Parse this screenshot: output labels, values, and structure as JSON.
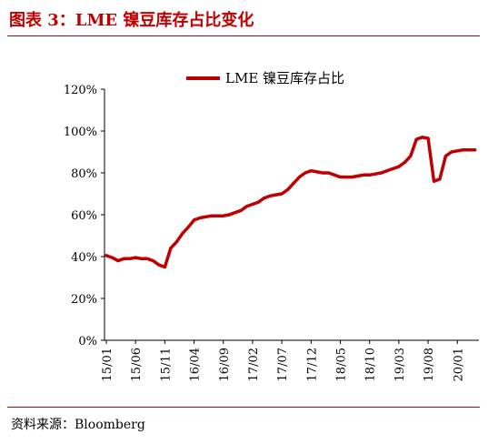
{
  "header": {
    "title": "图表 3：LME 镍豆库存占比变化"
  },
  "footer": {
    "source": "资料来源：Bloomberg"
  },
  "colors": {
    "accent": "#c00000",
    "series": "#c00000"
  },
  "chart_data": {
    "type": "line",
    "title": "",
    "xlabel": "",
    "ylabel": "",
    "ylim": [
      0,
      120
    ],
    "y_unit": "%",
    "y_ticks": [
      "0%",
      "20%",
      "40%",
      "60%",
      "80%",
      "100%",
      "120%"
    ],
    "x_ticks": [
      "15/01",
      "15/06",
      "15/11",
      "16/04",
      "16/09",
      "17/02",
      "17/07",
      "17/12",
      "18/05",
      "18/10",
      "19/03",
      "19/08",
      "20/01"
    ],
    "grid": false,
    "legend": "top-center",
    "series": [
      {
        "name": "LME 镍豆库存占比",
        "x": [
          "15/01",
          "15/02",
          "15/03",
          "15/04",
          "15/05",
          "15/06",
          "15/07",
          "15/08",
          "15/09",
          "15/10",
          "15/11",
          "15/12",
          "16/01",
          "16/02",
          "16/03",
          "16/04",
          "16/05",
          "16/06",
          "16/07",
          "16/08",
          "16/09",
          "16/10",
          "16/11",
          "16/12",
          "17/01",
          "17/02",
          "17/03",
          "17/04",
          "17/05",
          "17/06",
          "17/07",
          "17/08",
          "17/09",
          "17/10",
          "17/11",
          "17/12",
          "18/01",
          "18/02",
          "18/03",
          "18/04",
          "18/05",
          "18/06",
          "18/07",
          "18/08",
          "18/09",
          "18/10",
          "18/11",
          "18/12",
          "19/01",
          "19/02",
          "19/03",
          "19/04",
          "19/05",
          "19/06",
          "19/07",
          "19/08",
          "19/09",
          "19/10",
          "19/11",
          "19/12",
          "20/01",
          "20/02",
          "20/03",
          "20/04"
        ],
        "values": [
          40.5,
          39.5,
          38,
          39,
          39,
          39.5,
          39,
          39,
          38,
          36,
          35,
          44,
          47,
          51,
          54,
          57.5,
          58.5,
          59,
          59.5,
          59.5,
          59.5,
          60,
          61,
          62,
          64,
          65,
          66,
          68,
          69,
          69.5,
          70,
          72,
          75,
          78,
          80,
          81,
          80.5,
          80,
          80,
          79,
          78,
          78,
          78,
          78.5,
          79,
          79,
          79.5,
          80,
          81,
          82,
          83,
          85,
          88,
          96,
          97,
          96.5,
          76,
          77,
          88,
          90,
          90.5,
          91,
          91,
          91
        ]
      }
    ]
  }
}
